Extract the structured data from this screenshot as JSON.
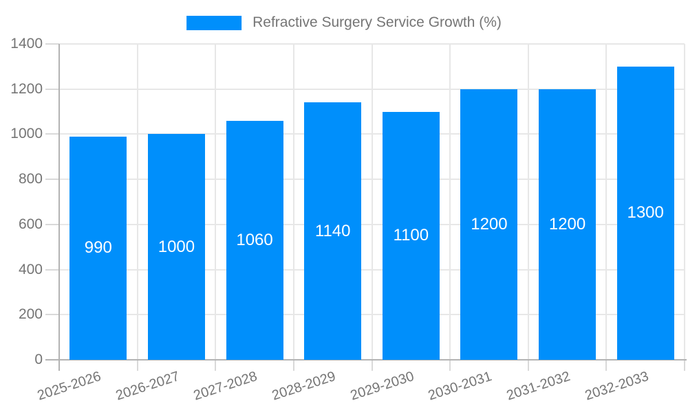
{
  "chart_data": {
    "type": "bar",
    "title": "",
    "legend": "Refractive Surgery Service Growth (%)",
    "legend_position": "top",
    "categories": [
      "2025-2026",
      "2026-2027",
      "2027-2028",
      "2028-2029",
      "2029-2030",
      "2030-2031",
      "2031-2032",
      "2032-2033"
    ],
    "values": [
      990,
      1000,
      1060,
      1140,
      1100,
      1200,
      1200,
      1300
    ],
    "xlabel": "",
    "ylabel": "",
    "ylim": [
      0,
      1400
    ],
    "yticks": [
      0,
      200,
      400,
      600,
      800,
      1000,
      1200,
      1400
    ],
    "grid": true,
    "bar_label_position": "center"
  },
  "colors": {
    "bar": "#008FFB",
    "grid": "#e7e7e7",
    "axis": "#b3b3b3",
    "tick": "#d9d9d9",
    "text": "#757575",
    "bar_label": "#ffffff",
    "background": "#ffffff"
  }
}
